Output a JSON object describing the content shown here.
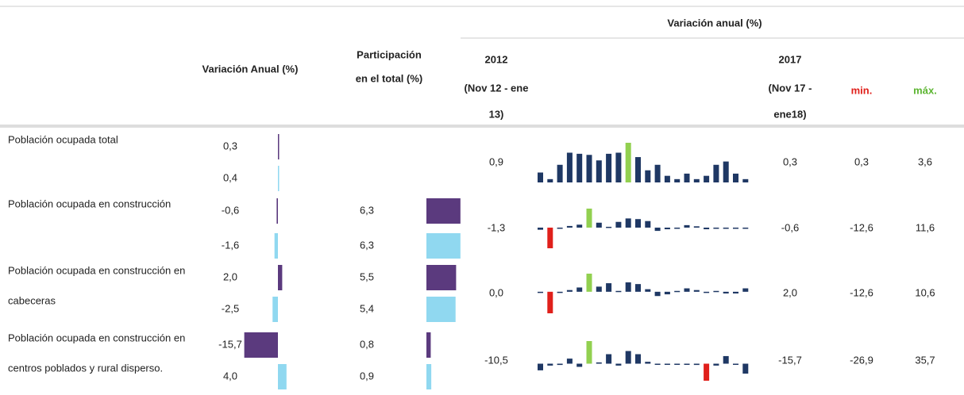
{
  "header": {
    "group_title": "Variación anual (%)",
    "col_var": "Variación Anual (%)",
    "col_part": [
      "Participación",
      "en el total (%)"
    ],
    "col_2012": [
      "2012",
      "(Nov 12 - ene",
      "13)"
    ],
    "col_2017": [
      "2017",
      "(Nov 17 -",
      "ene18)"
    ],
    "col_min": "min.",
    "col_max": "máx."
  },
  "rows": [
    {
      "label_lines": [
        "Población ocupada total"
      ],
      "sub": [
        {
          "var": 0.3,
          "var_label": "0,3"
        },
        {
          "var": 0.4,
          "var_label": "0,4"
        }
      ],
      "v2012": "0,9",
      "v2017": "0,3",
      "min": "0,3",
      "max": "3,6",
      "spark": [
        0.9,
        0.3,
        1.6,
        2.7,
        2.6,
        2.5,
        2.0,
        2.6,
        2.7,
        3.6,
        2.3,
        1.1,
        1.6,
        0.6,
        0.3,
        0.8,
        0.3,
        0.6,
        1.6,
        1.9,
        0.8,
        0.3
      ]
    },
    {
      "label_lines": [
        "Población ocupada en construcción"
      ],
      "sub": [
        {
          "var": -0.6,
          "var_label": "-0,6",
          "part": 6.3,
          "part_label": "6,3"
        },
        {
          "var": -1.6,
          "var_label": "-1,6",
          "part": 6.3,
          "part_label": "6,3"
        }
      ],
      "v2012": "-1,3",
      "v2017": "-0,6",
      "min": "-12,6",
      "max": "11,6",
      "spark": [
        -1.3,
        -12.6,
        -0.5,
        1.0,
        1.8,
        11.6,
        3.0,
        0.5,
        3.5,
        5.6,
        5.2,
        4.0,
        -2.0,
        -1.0,
        -0.5,
        1.5,
        0.8,
        -1.0,
        -0.6,
        -0.3,
        -0.6,
        -0.6
      ]
    },
    {
      "label_lines": [
        "Población ocupada en construcción en",
        "cabeceras"
      ],
      "sub": [
        {
          "var": 2.0,
          "var_label": "2,0",
          "part": 5.5,
          "part_label": "5,5"
        },
        {
          "var": -2.5,
          "var_label": "-2,5",
          "part": 5.4,
          "part_label": "5,4"
        }
      ],
      "v2012": "0,0",
      "v2017": "2,0",
      "min": "-12,6",
      "max": "10,6",
      "spark": [
        0.0,
        -12.6,
        -0.5,
        1.0,
        2.5,
        10.6,
        3.0,
        5.0,
        0.5,
        5.5,
        4.5,
        1.5,
        -2.5,
        -1.5,
        0.5,
        2.0,
        1.0,
        -0.5,
        0.5,
        -1.0,
        -1.0,
        2.0
      ]
    },
    {
      "label_lines": [
        "Población ocupada en construcción en",
        "centros poblados y rural disperso."
      ],
      "sub": [
        {
          "var": -15.7,
          "var_label": "-15,7",
          "part": 0.8,
          "part_label": "0,8"
        },
        {
          "var": 4.0,
          "var_label": "4,0",
          "part": 0.9,
          "part_label": "0,9"
        }
      ],
      "v2012": "-10,5",
      "v2017": "-15,7",
      "min": "-26,9",
      "max": "35,7",
      "spark": [
        -10.5,
        -3.0,
        -2.0,
        8.0,
        -5.0,
        35.7,
        2.0,
        15.0,
        -3.0,
        20.0,
        15.0,
        3.0,
        -1.0,
        -1.0,
        -0.5,
        -1.0,
        -2.0,
        -26.9,
        -3.0,
        12.0,
        -1.0,
        -15.7
      ]
    }
  ]
}
